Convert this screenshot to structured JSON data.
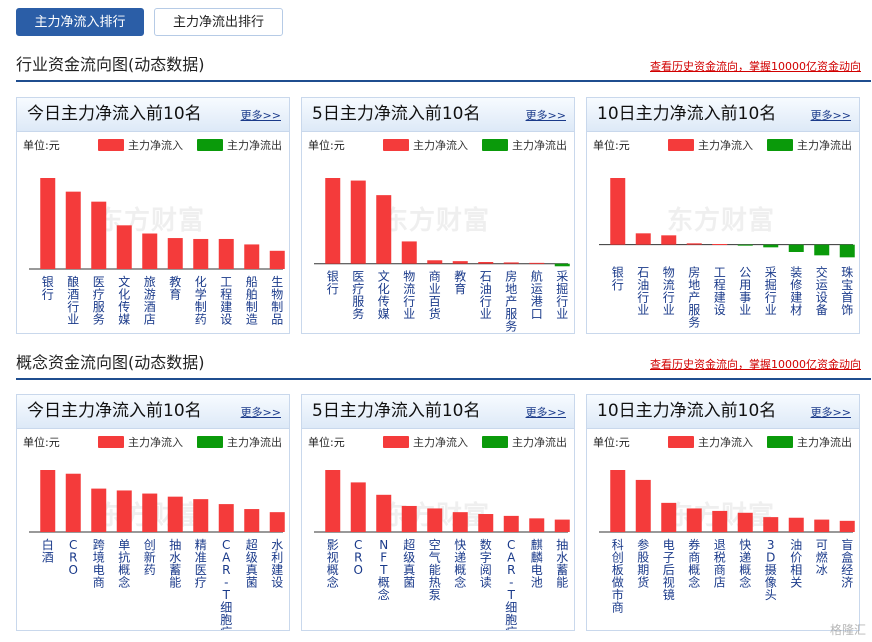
{
  "tabs": [
    {
      "label": "主力净流入排行",
      "active": true
    },
    {
      "label": "主力净流出排行",
      "active": false
    }
  ],
  "colors": {
    "inflow": "#f43b3b",
    "outflow": "#0a9a0a",
    "accent": "#2b5ea7"
  },
  "watermark": "东方财富",
  "brand_watermark": "格隆汇",
  "sections": [
    {
      "title": "行业资金流向图(动态数据)",
      "link": "查看历史资金流向，掌握10000亿资金动向",
      "panels": [
        {
          "title": "今日主力净流入前10名",
          "more": "更多>>",
          "unit": "单位:元",
          "legend_in": "主力净流入",
          "legend_out": "主力净流出",
          "chart_data": {
            "type": "bar",
            "ylim": [
              0,
              100
            ],
            "categories": [
              "银行",
              "酿酒行业",
              "医疗服务",
              "文化传媒",
              "旅游酒店",
              "教育",
              "化学制药",
              "工程建设",
              "船舶制造",
              "生物制品"
            ],
            "values": [
              100,
              85,
              74,
              48,
              39,
              34,
              33,
              33,
              27,
              20
            ]
          }
        },
        {
          "title": "5日主力净流入前10名",
          "more": "更多>>",
          "unit": "单位:元",
          "legend_in": "主力净流入",
          "legend_out": "主力净流出",
          "chart_data": {
            "type": "bar",
            "ylim": [
              -5,
              100
            ],
            "categories": [
              "银行",
              "医疗服务",
              "文化传媒",
              "物流行业",
              "商业百货",
              "教育",
              "石油行业",
              "房地产服务",
              "航运港口",
              "采掘行业"
            ],
            "values": [
              100,
              97,
              80,
              26,
              4,
              3,
              2,
              1.5,
              1,
              -3
            ]
          }
        },
        {
          "title": "10日主力净流入前10名",
          "more": "更多>>",
          "unit": "单位:元",
          "legend_in": "主力净流入",
          "legend_out": "主力净流出",
          "chart_data": {
            "type": "bar",
            "ylim": [
              -20,
              100
            ],
            "categories": [
              "银行",
              "石油行业",
              "物流行业",
              "房地产服务",
              "工程建设",
              "公用事业",
              "采掘行业",
              "装修建材",
              "交运设备",
              "珠宝首饰"
            ],
            "values": [
              100,
              17,
              14,
              2,
              1,
              -1,
              -4,
              -11,
              -16,
              -19
            ]
          }
        }
      ]
    },
    {
      "title": "概念资金流向图(动态数据)",
      "link": "查看历史资金流向，掌握10000亿资金动向",
      "panels": [
        {
          "title": "今日主力净流入前10名",
          "more": "更多>>",
          "unit": "单位:元",
          "legend_in": "主力净流入",
          "legend_out": "主力净流出",
          "chart_data": {
            "type": "bar",
            "ylim": [
              0,
              100
            ],
            "categories": [
              "白酒",
              "CRO",
              "跨境电商",
              "单抗概念",
              "创新药",
              "抽水蓄能",
              "精准医疗",
              "CAR-T细胞疗法",
              "超级真菌",
              "水利建设"
            ],
            "values": [
              100,
              94,
              70,
              67,
              62,
              57,
              53,
              45,
              37,
              32
            ]
          }
        },
        {
          "title": "5日主力净流入前10名",
          "more": "更多>>",
          "unit": "单位:元",
          "legend_in": "主力净流入",
          "legend_out": "主力净流出",
          "chart_data": {
            "type": "bar",
            "ylim": [
              0,
              100
            ],
            "categories": [
              "影视概念",
              "CRO",
              "NFT概念",
              "超级真菌",
              "空气能热泵",
              "快递概念",
              "数字阅读",
              "CAR-T细胞疗法",
              "麒麟电池",
              "抽水蓄能"
            ],
            "values": [
              100,
              80,
              60,
              42,
              38,
              32,
              29,
              26,
              22,
              20
            ]
          }
        },
        {
          "title": "10日主力净流入前10名",
          "more": "更多>>",
          "unit": "单位:元",
          "legend_in": "主力净流入",
          "legend_out": "主力净流出",
          "chart_data": {
            "type": "bar",
            "ylim": [
              0,
              100
            ],
            "categories": [
              "科创板做市商",
              "参股期货",
              "电子后视镜",
              "券商概念",
              "退税商店",
              "快递概念",
              "3D摄像头",
              "油价相关",
              "可燃冰",
              "盲盒经济"
            ],
            "values": [
              100,
              84,
              47,
              38,
              34,
              31,
              24,
              23,
              20,
              18
            ]
          }
        }
      ]
    }
  ]
}
